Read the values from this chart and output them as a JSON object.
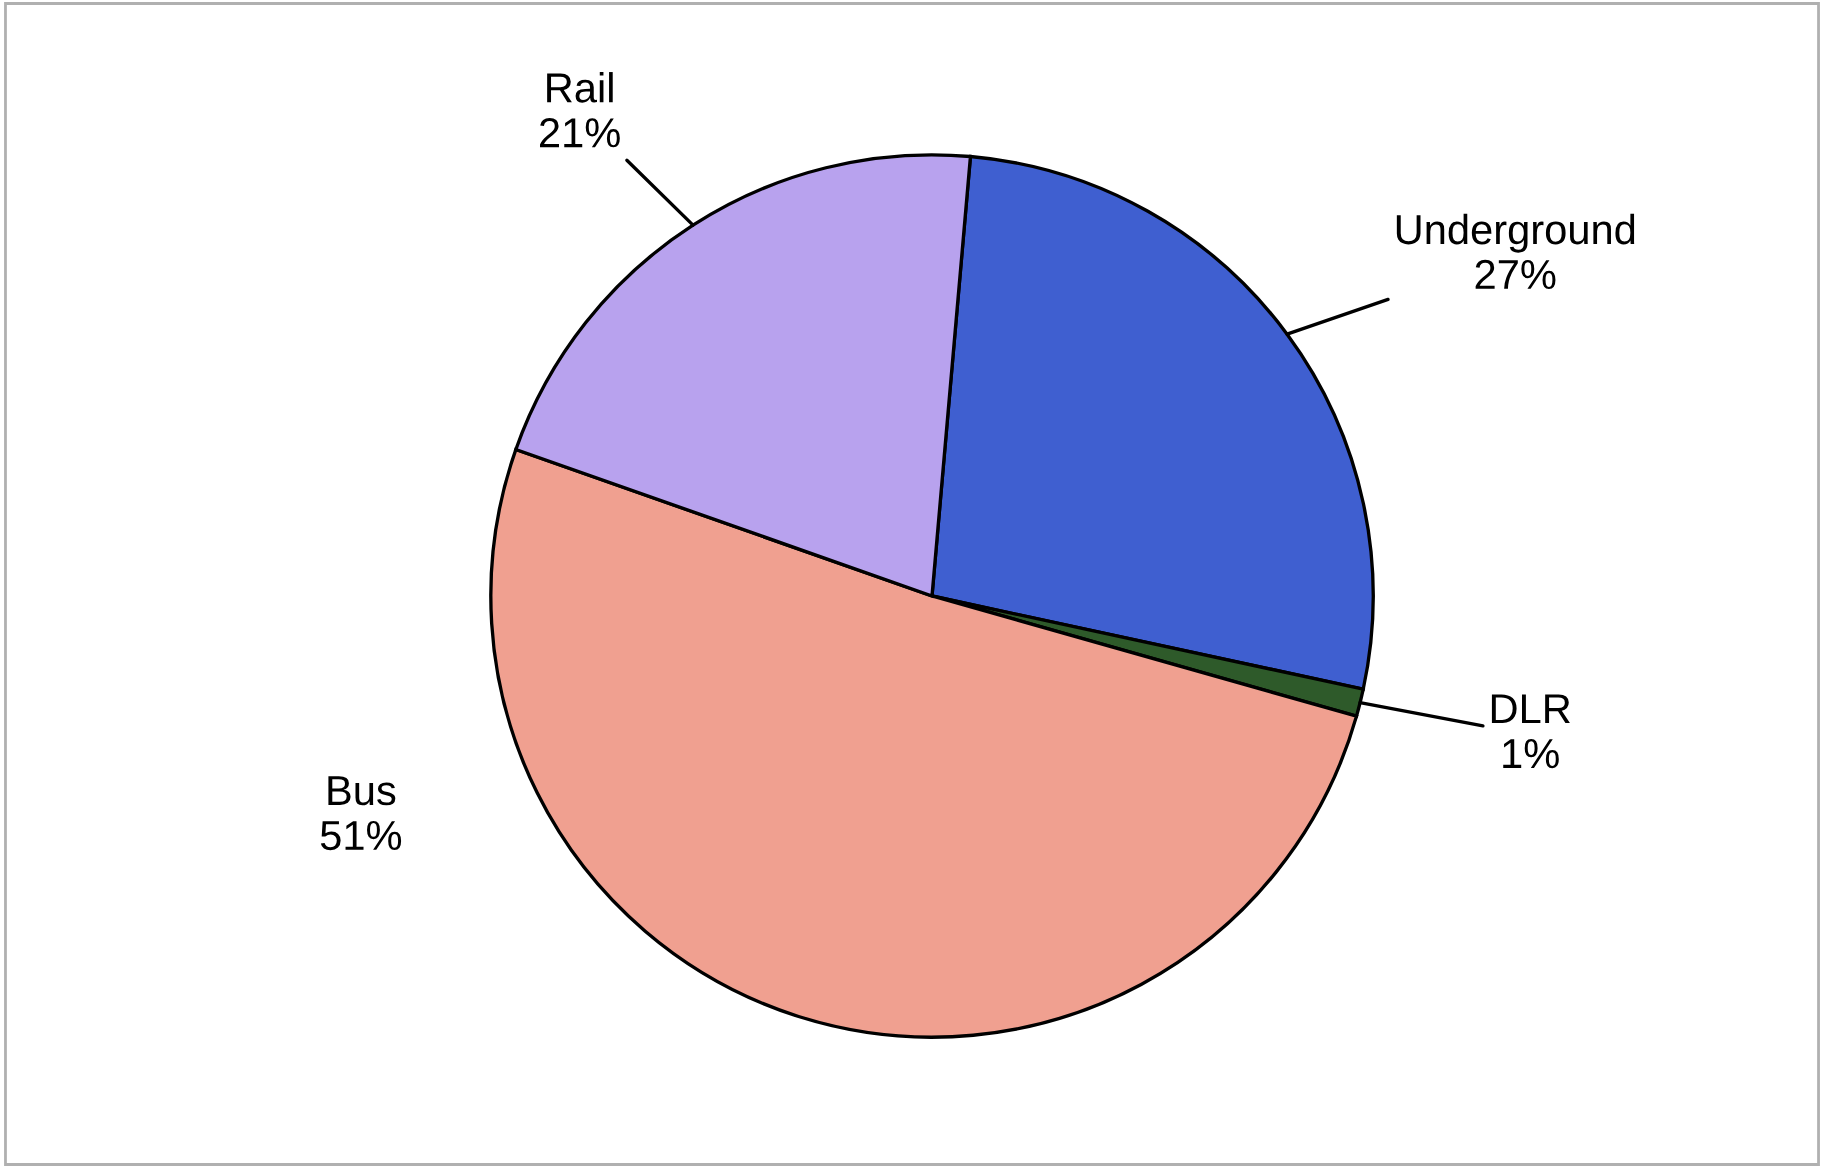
{
  "chart_data": {
    "type": "pie",
    "categories": [
      "Underground",
      "DLR",
      "Bus",
      "Rail"
    ],
    "values": [
      27,
      1,
      51,
      21
    ],
    "value_labels": [
      "27%",
      "1%",
      "51%",
      "21%"
    ],
    "colors": [
      "#3f5fd0",
      "#2e5a2a",
      "#f0a090",
      "#b8a2ee"
    ],
    "legend": false
  }
}
